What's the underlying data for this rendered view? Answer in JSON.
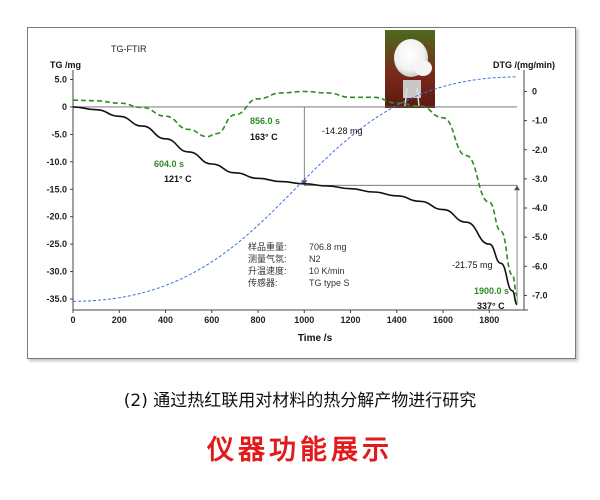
{
  "chart_data": {
    "type": "line",
    "title": "TG-FTIR",
    "xlabel": "Time /s",
    "ylabel_left": "TG /mg",
    "ylabel_right": "DTG /(mg/min)",
    "xlim": [
      0,
      1950
    ],
    "ylim_left": [
      -37,
      6
    ],
    "ylim_right": [
      -7.5,
      0.6
    ],
    "x_ticks": [
      "0",
      "200",
      "400",
      "600",
      "800",
      "1000",
      "1200",
      "1400",
      "1600",
      "1800"
    ],
    "x_tick_values": [
      0,
      200,
      400,
      600,
      800,
      1000,
      1200,
      1400,
      1600,
      1800
    ],
    "y_left_ticks": [
      "5.0",
      "0",
      "-5.0",
      "-10.0",
      "-15.0",
      "-20.0",
      "-25.0",
      "-30.0",
      "-35.0"
    ],
    "y_left_tick_values": [
      5,
      0,
      -5,
      -10,
      -15,
      -20,
      -25,
      -30,
      -35
    ],
    "y_right_ticks": [
      "0",
      "-1.0",
      "-2.0",
      "-3.0",
      "-4.0",
      "-5.0",
      "-6.0",
      "-7.0"
    ],
    "y_right_tick_values": [
      0,
      -1,
      -2,
      -3,
      -4,
      -5,
      -6,
      -7
    ],
    "grid": false,
    "series": [
      {
        "axis": "left",
        "color": "#111111",
        "style": "solid",
        "x": [
          0,
          100,
          200,
          300,
          400,
          500,
          600,
          700,
          800,
          900,
          1000,
          1100,
          1200,
          1300,
          1400,
          1500,
          1600,
          1700,
          1800,
          1850,
          1900,
          1920
        ],
        "values": [
          0,
          -0.5,
          -1.7,
          -3.5,
          -5.8,
          -8.2,
          -10.4,
          -12.0,
          -13.0,
          -13.6,
          -14.0,
          -14.4,
          -14.9,
          -15.5,
          -16.2,
          -17.2,
          -18.7,
          -21.0,
          -25.0,
          -28.5,
          -33.5,
          -36.0
        ]
      },
      {
        "axis": "right",
        "color": "#2e8b22",
        "style": "dashed",
        "x": [
          0,
          100,
          200,
          300,
          400,
          500,
          580,
          620,
          700,
          800,
          900,
          1000,
          1100,
          1200,
          1300,
          1400,
          1500,
          1600,
          1700,
          1800,
          1850,
          1900,
          1920
        ],
        "values": [
          -0.3,
          -0.32,
          -0.4,
          -0.55,
          -0.85,
          -1.3,
          -1.55,
          -1.45,
          -0.8,
          -0.25,
          -0.05,
          0.0,
          -0.05,
          -0.2,
          -0.2,
          -0.4,
          -0.5,
          -0.9,
          -2.2,
          -3.8,
          -4.8,
          -6.3,
          -7.0
        ]
      },
      {
        "axis": "right",
        "color": "#3f6fe0",
        "style": "dashed",
        "x": [
          0,
          1920
        ],
        "values": [
          -7.2,
          0.5
        ]
      }
    ],
    "reference_lines": [
      {
        "axis": "left",
        "orientation": "horizontal",
        "value": 0,
        "x_from": 0,
        "x_to": 1920
      },
      {
        "axis": "left",
        "orientation": "horizontal",
        "value": -14.28,
        "x_from": 1000,
        "x_to": 1920
      },
      {
        "axis": "left",
        "orientation": "vertical",
        "value": 1000,
        "y_from": 0,
        "y_to": -14.28
      },
      {
        "axis": "left",
        "orientation": "vertical",
        "value": 1920,
        "y_from": -14.28,
        "y_to": -36.0
      }
    ],
    "annotations": {
      "peak1_time": "604.0 s",
      "peak1_temp": "121° C",
      "peak2_time": "856.0 s",
      "peak2_temp": "163° C",
      "loss1": "-14.28 mg",
      "loss2": "-21.75 mg",
      "peak3_time": "1900.0 s",
      "peak3_temp": "337° C"
    },
    "info": [
      {
        "label": "样品重量:",
        "value": "706.8 mg"
      },
      {
        "label": "测量气氛:",
        "value": "N2"
      },
      {
        "label": "升温速度:",
        "value": "10 K/min"
      },
      {
        "label": "传感器:",
        "value": "TG type S"
      }
    ]
  },
  "captions": {
    "line1": "(2) 通过热红联用对材料的热分解产物进行研究",
    "line2": "仪器功能展示"
  },
  "colors": {
    "tg": "#111111",
    "dtg": "#2e8b22",
    "temperature": "#3f6fe0",
    "title_red": "#e31a1c"
  }
}
